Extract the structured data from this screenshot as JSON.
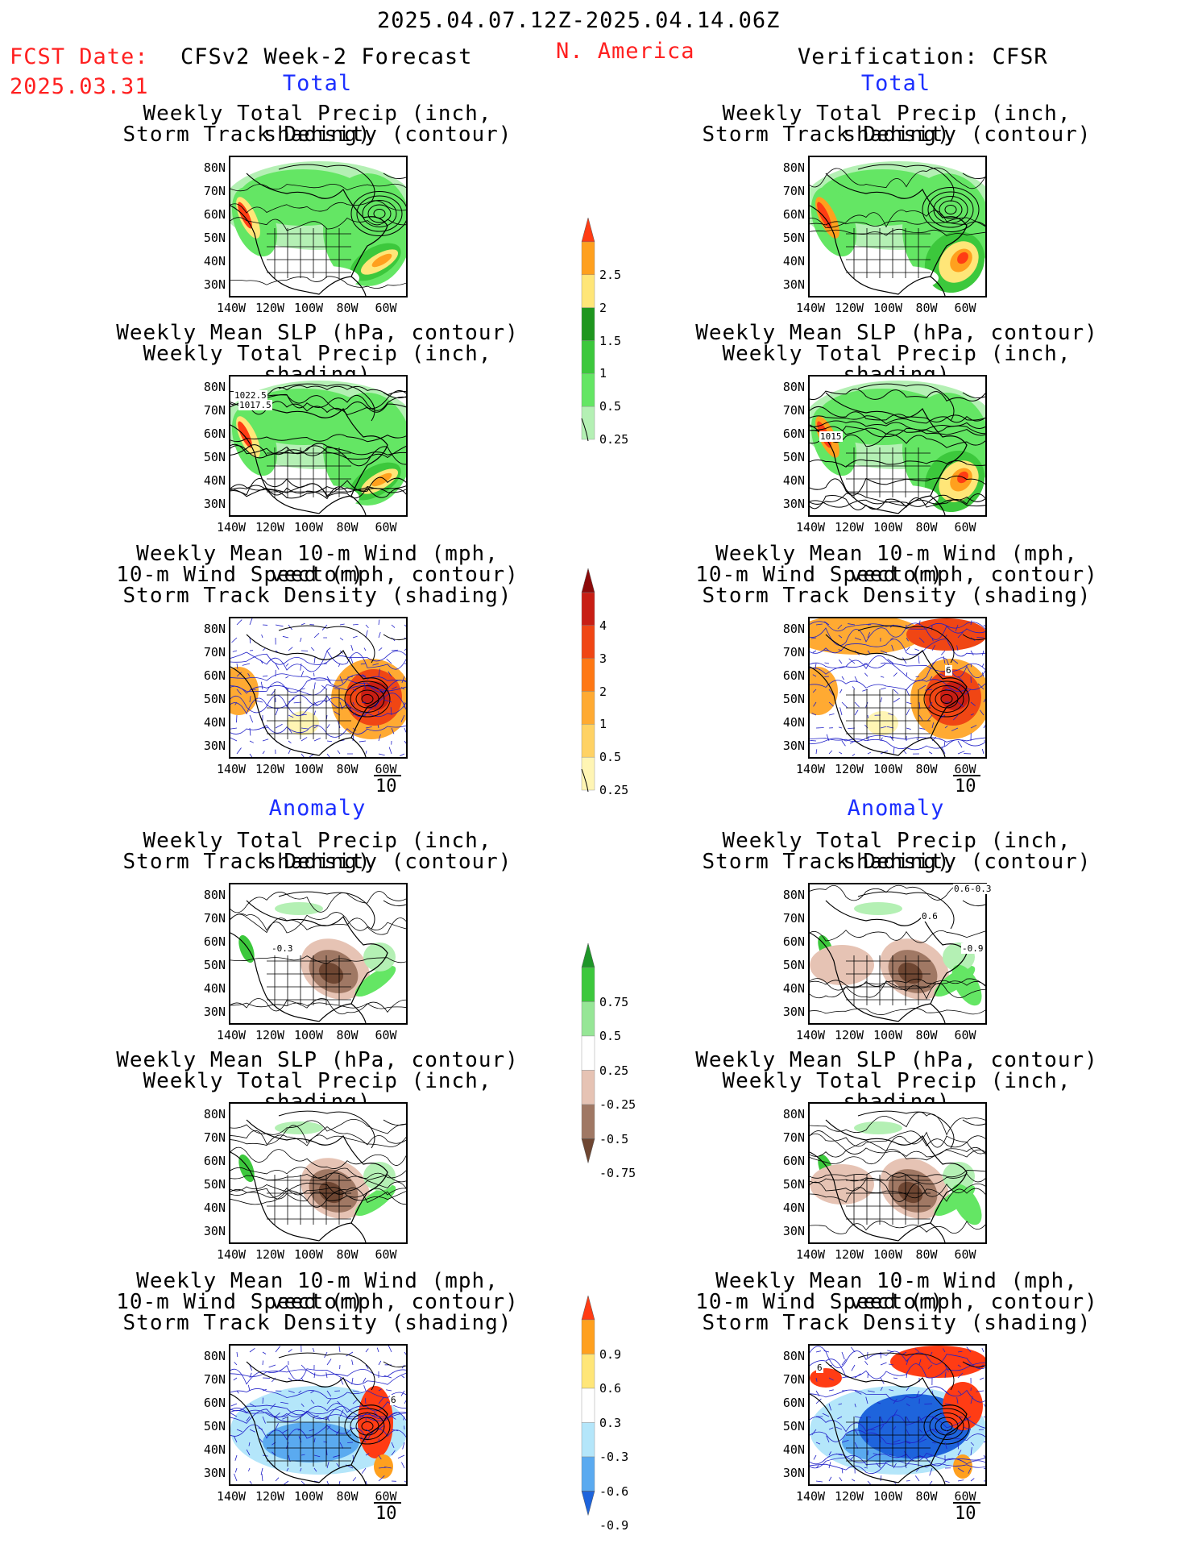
{
  "header": {
    "date_range": "2025.04.07.12Z-2025.04.14.06Z",
    "fcst_label": "FCST Date:",
    "fcst_date": "2025.03.31",
    "left_title": "CFSv2 Week-2 Forecast",
    "region": "N. America",
    "right_title": "Verification: CFSR"
  },
  "sections": {
    "total": "Total",
    "anomaly": "Anomaly"
  },
  "captions": {
    "precip_track": [
      "Weekly Total Precip (inch, shading)",
      "Storm Track Density (contour)"
    ],
    "slp_precip": [
      "Weekly Mean SLP (hPa, contour)",
      "Weekly Total Precip (inch, shading)"
    ],
    "wind_track": [
      "Weekly Mean 10-m Wind (mph, vector)",
      "10-m Wind Speed (mph, contour)",
      "Storm Track Density (shading)"
    ]
  },
  "axes": {
    "lat_labels": [
      "80N",
      "70N",
      "60N",
      "50N",
      "40N",
      "30N"
    ],
    "lon_labels": [
      "140W",
      "120W",
      "100W",
      "80W",
      "60W"
    ],
    "vector_ref": "10"
  },
  "contour_labels": {
    "slp_fcst": [
      "1022.5",
      "1017.5"
    ],
    "slp_obs": [
      "1015"
    ],
    "anom_track_fcst": [
      "-0.3"
    ],
    "anom_track_obs": [
      "0.6",
      "-0.3",
      "0.6",
      "-0.9"
    ],
    "wind_anom_fcst": [
      "6"
    ],
    "wind_anom_obs": [
      "6"
    ],
    "wind_total_obs": [
      "6"
    ]
  },
  "colorbars": {
    "precip_total": {
      "ticks": [
        "0.25",
        "0.5",
        "1",
        "1.5",
        "2",
        "2.5"
      ],
      "colors": [
        "#b4f0b4",
        "#64e664",
        "#3cc83c",
        "#1e961e",
        "#ffe678",
        "#ffa01e",
        "#ff3c14"
      ]
    },
    "track_total": {
      "ticks": [
        "0.25",
        "0.5",
        "1",
        "2",
        "3",
        "4"
      ],
      "colors": [
        "#fff5b4",
        "#ffd264",
        "#ffaa32",
        "#ff7814",
        "#f04614",
        "#c81e14",
        "#8c0a0a"
      ]
    },
    "precip_anom": {
      "ticks": [
        "0.75",
        "0.5",
        "0.25",
        "-0.25",
        "-0.5",
        "-0.75"
      ],
      "colors": [
        "#1e9628",
        "#3cc83c",
        "#96e696",
        "#ffffff",
        "#e6c3b4",
        "#a07864",
        "#6e4632"
      ]
    },
    "track_anom": {
      "ticks": [
        "0.9",
        "0.6",
        "0.3",
        "-0.3",
        "-0.6",
        "-0.9"
      ],
      "colors": [
        "#ff3c14",
        "#ffa01e",
        "#ffe678",
        "#ffffff",
        "#b4e6fa",
        "#5aaaf0",
        "#1e64dc"
      ]
    }
  }
}
